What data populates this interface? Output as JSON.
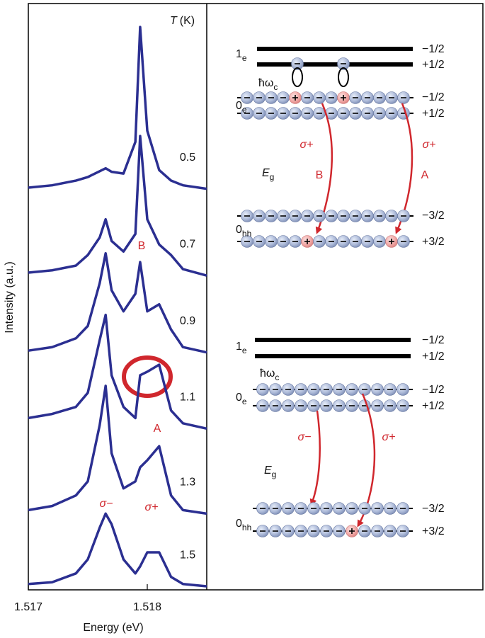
{
  "chart_data": {
    "type": "line",
    "x_label": "Energy (eV)",
    "y_label": "Intensity (a.u.)",
    "legend_title_symbol": "T",
    "legend_title_unit": "(K)",
    "x": [
      1.517,
      1.5172,
      1.5174,
      1.5175,
      1.5176,
      1.51765,
      1.5177,
      1.5178,
      1.5179,
      1.51794,
      1.518,
      1.5181,
      1.5182,
      1.5183,
      1.5185
    ],
    "xlim": [
      1.517,
      1.5185
    ],
    "xticks": [
      1.517,
      1.518
    ],
    "ylim": [
      0,
      100
    ],
    "series": [
      {
        "name": "0.5",
        "color": "#2b2f91",
        "values": [
          68.6,
          69.0,
          69.8,
          70.4,
          71.4,
          71.9,
          71.3,
          71.0,
          76.4,
          96.0,
          78.3,
          71.6,
          69.8,
          69.0,
          68.4
        ]
      },
      {
        "name": "0.7",
        "color": "#2b2f91",
        "values": [
          54.1,
          54.5,
          55.3,
          57.1,
          60.1,
          63.2,
          59.5,
          57.7,
          60.7,
          77.4,
          63.2,
          58.9,
          57.1,
          54.7,
          53.6
        ]
      },
      {
        "name": "0.9",
        "color": "#2b2f91",
        "values": [
          40.8,
          41.4,
          42.9,
          45.0,
          52.3,
          57.4,
          51.1,
          47.5,
          50.5,
          55.9,
          47.5,
          48.7,
          44.4,
          41.4,
          40.5
        ]
      },
      {
        "name": "1.1",
        "color": "#2b2f91",
        "values": [
          29.3,
          30.0,
          31.2,
          33.6,
          42.6,
          46.9,
          36.6,
          31.2,
          29.3,
          36.6,
          37.2,
          38.4,
          30.6,
          28.4,
          27.5
        ]
      },
      {
        "name": "1.3",
        "color": "#2b2f91",
        "values": [
          13.6,
          14.3,
          16.1,
          18.5,
          28.1,
          34.8,
          23.3,
          17.3,
          18.5,
          20.9,
          22.1,
          24.5,
          16.1,
          13.6,
          13.0
        ]
      },
      {
        "name": "1.5",
        "color": "#2b2f91",
        "values": [
          1.0,
          1.3,
          2.8,
          5.2,
          10.6,
          13.0,
          11.2,
          5.2,
          2.8,
          4.0,
          6.4,
          6.4,
          2.2,
          1.0,
          0.6
        ]
      }
    ],
    "annotations": [
      "B",
      "A",
      "σ−",
      "σ+"
    ]
  },
  "diagram": {
    "top": {
      "level_1e": {
        "main": "1",
        "sub": "e"
      },
      "cyclotron": {
        "main": "ħω",
        "sub": "c"
      },
      "level_0e": {
        "main": "0",
        "sub": "e"
      },
      "gap": {
        "main": "E",
        "sub": "g"
      },
      "level_0hh": {
        "main": "0",
        "sub": "hh"
      },
      "spins": [
        "−1/2",
        "+1/2",
        "−1/2",
        "+1/2",
        "−3/2",
        "+3/2"
      ],
      "transitions": [
        {
          "polarization": "σ+",
          "label": "B"
        },
        {
          "polarization": "σ+",
          "label": "A"
        }
      ]
    },
    "bottom": {
      "level_1e": {
        "main": "1",
        "sub": "e"
      },
      "cyclotron": {
        "main": "ħω",
        "sub": "c"
      },
      "level_0e": {
        "main": "0",
        "sub": "e"
      },
      "gap": {
        "main": "E",
        "sub": "g"
      },
      "level_0hh": {
        "main": "0",
        "sub": "hh"
      },
      "spins": [
        "−1/2",
        "+1/2",
        "−1/2",
        "+1/2",
        "−3/2",
        "+3/2"
      ],
      "transitions": [
        {
          "polarization": "σ−"
        },
        {
          "polarization": "σ+"
        }
      ]
    }
  }
}
